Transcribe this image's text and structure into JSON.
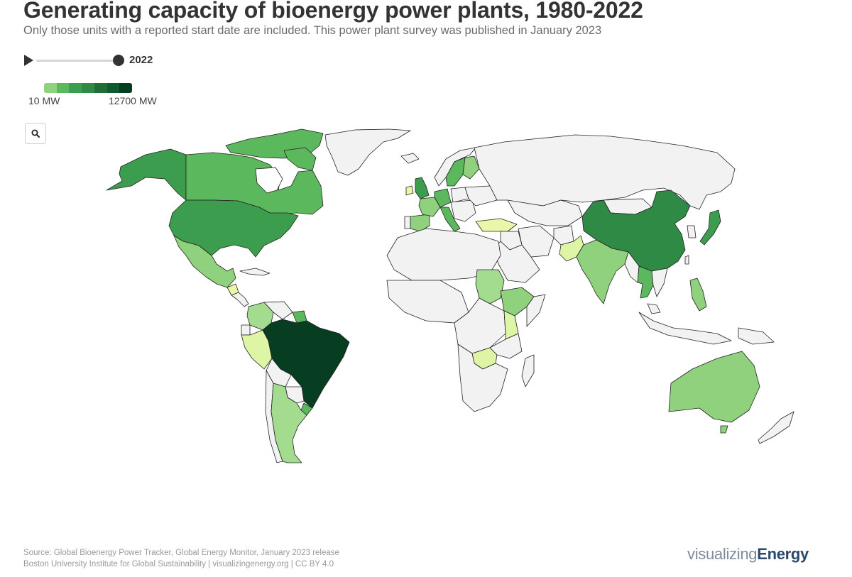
{
  "title": "Generating capacity of bioenergy power plants, 1980-2022",
  "subtitle": "Only those units with a reported start date are included. This power plant survey was published in January 2023",
  "timeline": {
    "year": "2022",
    "play_icon": "play-icon",
    "range": [
      1980,
      2022
    ]
  },
  "legend": {
    "min_label": "10 MW",
    "max_label": "12700 MW",
    "colors": [
      "#8fd17d",
      "#5cb85c",
      "#3d9d4f",
      "#2f8a45",
      "#1f6e37",
      "#0f5a2e",
      "#073d20"
    ]
  },
  "search_button": {
    "icon": "search-icon"
  },
  "map_data": {
    "metric": "bioenergy generating capacity (MW)",
    "scale": "log",
    "no_data_color": "#f2f2f2",
    "country_fills": {
      "Brazil": "#073d20",
      "China": "#2f8a45",
      "United States": "#3d9d4f",
      "Japan": "#3d9d4f",
      "United Kingdom": "#3d9d4f",
      "Canada": "#5cb85c",
      "Alaska (US)": "#3d9d4f",
      "Greenland": "#f2f2f2",
      "Sweden": "#5cb85c",
      "Finland": "#8fd17d",
      "Germany": "#5cb85c",
      "France": "#8fd17d",
      "Spain": "#8fd17d",
      "Italy": "#5cb85c",
      "India": "#8fd17d",
      "Thailand": "#5cb85c",
      "Philippines": "#8fd17d",
      "Mexico": "#8fd17d",
      "Australia": "#8fd17d",
      "Argentina": "#a3dc8f",
      "Colombia": "#a3dc8f",
      "Peru": "#dff5a6",
      "Sudan": "#a3dc8f",
      "Ethiopia": "#8fd17d",
      "Kenya": "#dff5a6",
      "Zambia": "#dff5a6",
      "Turkey": "#eaf7a8",
      "Pakistan": "#dff5a6",
      "Guatemala": "#eaf7a8",
      "Ireland": "#eaf7a8",
      "Guyana": "#5cb85c",
      "Uruguay": "#5cb85c",
      "Russia": "#f2f2f2",
      "Africa (other)": "#f2f2f2"
    }
  },
  "source": {
    "line1": "Source: Global Bioenergy Power Tracker, Global Energy Monitor, January 2023 release",
    "line2": "Boston University Institute for Global Sustainability | visualizingenergy.org | CC BY 4.0"
  },
  "logo": {
    "part1": "visualizing",
    "part2": "Energy"
  }
}
